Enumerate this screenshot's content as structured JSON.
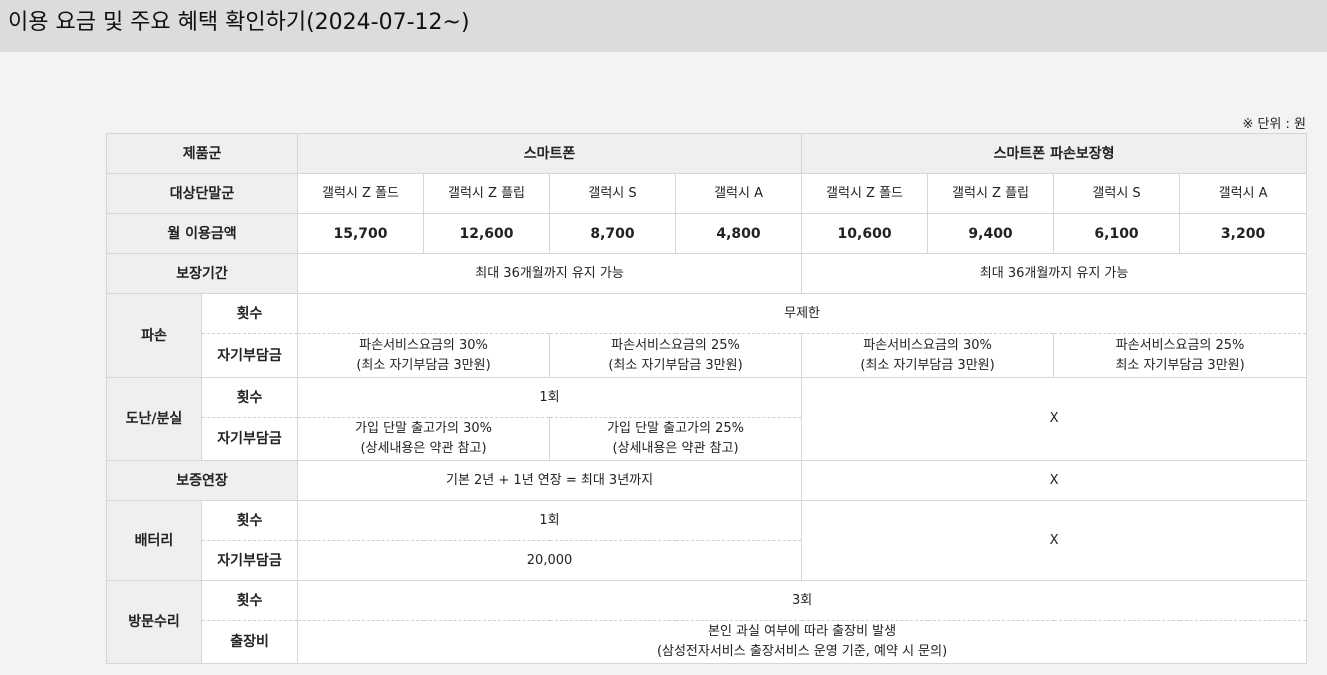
{
  "page": {
    "title": "이용 요금 및 주요 혜택 확인하기(2024-07-12~)",
    "unit_note": "※ 단위 : 원"
  },
  "table": {
    "labels": {
      "product_group": "제품군",
      "target_device": "대상단말군",
      "monthly_fee": "월 이용금액",
      "coverage_period": "보장기간",
      "damage": "파손",
      "count": "횟수",
      "deductible": "자기부담금",
      "theft_loss": "도난/분실",
      "warranty_extension": "보증연장",
      "battery": "배터리",
      "visit_repair": "방문수리",
      "visit_fee": "출장비"
    },
    "groups": [
      "스마트폰",
      "스마트폰 파손보장형"
    ],
    "devices": [
      "갤럭시 Z 폴드",
      "갤럭시 Z 플립",
      "갤럭시 S",
      "갤럭시 A",
      "갤럭시 Z 폴드",
      "갤럭시 Z 플립",
      "갤럭시 S",
      "갤럭시 A"
    ],
    "fees": [
      "15,700",
      "12,600",
      "8,700",
      "4,800",
      "10,600",
      "9,400",
      "6,100",
      "3,200"
    ],
    "coverage": [
      "최대 36개월까지 유지 가능",
      "최대 36개월까지 유지 가능"
    ],
    "damage": {
      "count": "무제한",
      "deductibles": [
        [
          "파손서비스요금의 30%",
          "(최소 자기부담금 3만원)"
        ],
        [
          "파손서비스요금의 25%",
          "(최소 자기부담금 3만원)"
        ],
        [
          "파손서비스요금의 30%",
          "(최소 자기부담금 3만원)"
        ],
        [
          "파손서비스요금의 25%",
          "최소 자기부담금 3만원)"
        ]
      ]
    },
    "theft": {
      "count": "1회",
      "deductibles": [
        [
          "가입 단말 출고가의 30%",
          "(상세내용은 약관 참고)"
        ],
        [
          "가입 단말 출고가의 25%",
          "(상세내용은 약관 참고)"
        ]
      ],
      "na": "X"
    },
    "warranty": {
      "smartphone": "기본 2년 + 1년 연장 = 최대 3년까지",
      "na": "X"
    },
    "battery": {
      "count": "1회",
      "deductible": "20,000",
      "na": "X"
    },
    "visit": {
      "count": "3회",
      "fee_line1": "본인 과실 여부에 따라 출장비 발생",
      "fee_line2": "(삼성전자서비스 출장서비스 운영 기준, 예약 시 문의)"
    }
  }
}
